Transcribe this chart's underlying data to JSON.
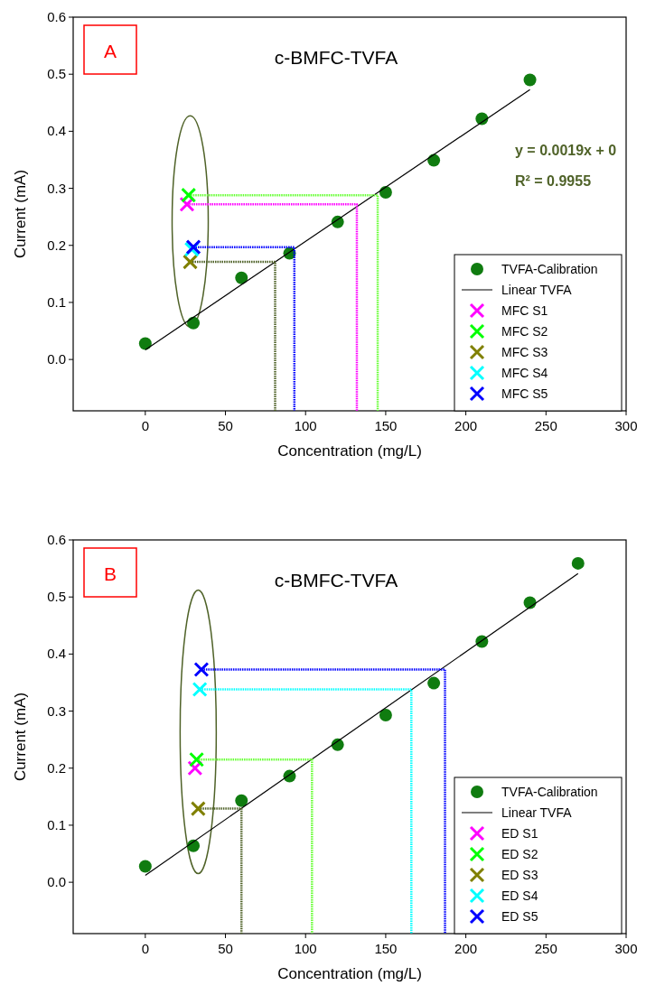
{
  "chart_data": [
    {
      "type": "scatter",
      "title": "c-BMFC-TVFA",
      "xlabel": "Concentration (mg/L)",
      "ylabel": "Current (mA)",
      "annotations": [
        "A",
        "y = 0.0019x + 0",
        "R² = 0.9955"
      ],
      "xlim": [
        -45,
        300
      ],
      "ylim": [
        -0.09,
        0.6
      ],
      "xticks": [
        0,
        50,
        100,
        150,
        200,
        250,
        300
      ],
      "yticks": [
        {
          "value": 0,
          "label": "0.0"
        },
        0.1,
        0.2,
        0.3,
        0.4,
        0.5,
        0.6
      ],
      "legend": "bottom right",
      "series": [
        {
          "name": "TVFA-Calibration",
          "color": "#107c10",
          "marker": "circle",
          "x": [
            0,
            30,
            60,
            90,
            120,
            150,
            180,
            210,
            240
          ],
          "values": [
            0.028,
            0.064,
            0.143,
            0.186,
            0.241,
            0.293,
            0.349,
            0.422,
            0.49
          ]
        },
        {
          "name": "Linear TVFA",
          "type": "line",
          "color": "#000000",
          "marker": "none",
          "x": [
            0,
            240
          ],
          "values": [
            0.017,
            0.473
          ]
        },
        {
          "color": "#ff00ff",
          "type": "line",
          "line_style": "dotted",
          "marker": "none",
          "x": [
            26,
            132,
            132
          ],
          "values": [
            0.272,
            0.272,
            -0.09
          ]
        },
        {
          "color": "#66ff33",
          "type": "line",
          "line_style": "dotted",
          "marker": "none",
          "x": [
            27,
            145,
            145
          ],
          "values": [
            0.288,
            0.288,
            -0.09
          ]
        },
        {
          "color": "#4f6228",
          "type": "line",
          "line_style": "dotted",
          "marker": "none",
          "x": [
            28,
            81,
            81
          ],
          "values": [
            0.171,
            0.171,
            -0.09
          ]
        },
        {
          "color": "#0000ff",
          "type": "line",
          "line_style": "dotted",
          "marker": "none",
          "x": [
            30,
            93,
            93
          ],
          "values": [
            0.197,
            0.197,
            -0.09
          ]
        },
        {
          "name": "MFC S1",
          "color": "#ff00ff",
          "marker": "cross",
          "x": [
            26
          ],
          "values": [
            0.272
          ]
        },
        {
          "name": "MFC S2",
          "color": "#00ff00",
          "marker": "cross",
          "x": [
            27
          ],
          "values": [
            0.288
          ]
        },
        {
          "name": "MFC S3",
          "color": "#808000",
          "marker": "cross",
          "x": [
            28
          ],
          "values": [
            0.171
          ]
        },
        {
          "name": "MFC S4",
          "color": "#00ffff",
          "marker": "cross",
          "x": [
            29
          ],
          "values": [
            0.193
          ]
        },
        {
          "name": "MFC S5",
          "color": "#0000ff",
          "marker": "cross",
          "x": [
            30
          ],
          "values": [
            0.197
          ]
        }
      ]
    },
    {
      "type": "scatter",
      "title": "c-BMFC-TVFA",
      "xlabel": "Concentration (mg/L)",
      "ylabel": "Current (mA)",
      "annotations": [
        "B"
      ],
      "xlim": [
        -45,
        300
      ],
      "ylim": [
        -0.09,
        0.6
      ],
      "xticks": [
        0,
        50,
        100,
        150,
        200,
        250,
        300
      ],
      "yticks": [
        {
          "value": 0,
          "label": "0.0"
        },
        0.1,
        0.2,
        0.3,
        0.4,
        0.5,
        0.6
      ],
      "legend": "bottom right",
      "series": [
        {
          "name": "TVFA-Calibration",
          "color": "#107c10",
          "marker": "circle",
          "x": [
            0,
            30,
            60,
            90,
            120,
            150,
            180,
            210,
            240,
            270
          ],
          "values": [
            0.028,
            0.064,
            0.143,
            0.186,
            0.241,
            0.293,
            0.349,
            0.422,
            0.49,
            0.559
          ]
        },
        {
          "name": "Linear TVFA",
          "type": "line",
          "color": "#000000",
          "marker": "none",
          "x": [
            0,
            270
          ],
          "values": [
            0.012,
            0.541
          ]
        },
        {
          "color": "#66ff33",
          "type": "line",
          "line_style": "dotted",
          "marker": "none",
          "x": [
            32,
            104,
            104
          ],
          "values": [
            0.215,
            0.215,
            -0.09
          ]
        },
        {
          "color": "#4f6228",
          "type": "line",
          "line_style": "dotted",
          "marker": "none",
          "x": [
            33,
            60,
            60
          ],
          "values": [
            0.129,
            0.129,
            -0.09
          ]
        },
        {
          "color": "#00ffff",
          "type": "line",
          "line_style": "dotted",
          "marker": "none",
          "x": [
            34,
            166,
            166
          ],
          "values": [
            0.338,
            0.338,
            -0.09
          ]
        },
        {
          "color": "#0000ff",
          "type": "line",
          "line_style": "dotted",
          "marker": "none",
          "x": [
            35,
            187,
            187
          ],
          "values": [
            0.373,
            0.373,
            -0.09
          ]
        },
        {
          "name": "ED S1",
          "color": "#ff00ff",
          "marker": "cross",
          "x": [
            31
          ],
          "values": [
            0.2
          ]
        },
        {
          "name": "ED S2",
          "color": "#00ff00",
          "marker": "cross",
          "x": [
            32
          ],
          "values": [
            0.215
          ]
        },
        {
          "name": "ED S3",
          "color": "#808000",
          "marker": "cross",
          "x": [
            33
          ],
          "values": [
            0.129
          ]
        },
        {
          "name": "ED S4",
          "color": "#00ffff",
          "marker": "cross",
          "x": [
            34
          ],
          "values": [
            0.338
          ]
        },
        {
          "name": "ED S5",
          "color": "#0000ff",
          "marker": "cross",
          "x": [
            35
          ],
          "values": [
            0.373
          ]
        }
      ]
    }
  ]
}
